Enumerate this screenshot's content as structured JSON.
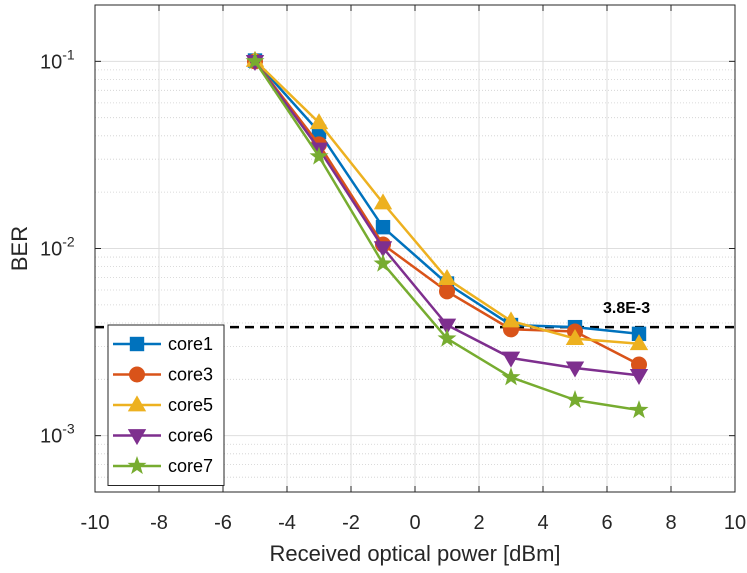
{
  "chart_data": {
    "type": "line",
    "title": "",
    "xlabel": "Received optical power [dBm]",
    "ylabel": "BER",
    "xlim": [
      -10,
      10
    ],
    "ylim": [
      0.0005,
      0.2
    ],
    "yscale": "log",
    "grid": true,
    "x_ticks": [
      -10,
      -8,
      -6,
      -4,
      -2,
      0,
      2,
      4,
      6,
      8,
      10
    ],
    "x_tick_labels": [
      "-10",
      "-8",
      "-6",
      "-4",
      "-2",
      "0",
      "2",
      "4",
      "6",
      "8",
      "10"
    ],
    "y_ticks": [
      0.001,
      0.01,
      0.1
    ],
    "y_tick_labels": [
      {
        "base": "10",
        "exp": "-3"
      },
      {
        "base": "10",
        "exp": "-2"
      },
      {
        "base": "10",
        "exp": "-1"
      }
    ],
    "x": [
      -5,
      -3,
      -1,
      1,
      3,
      5,
      7
    ],
    "series": [
      {
        "name": "core1",
        "color": "#0072BD",
        "marker": "square",
        "values": [
          0.101,
          0.042,
          0.013,
          0.0065,
          0.0039,
          0.0038,
          0.0035
        ]
      },
      {
        "name": "core3",
        "color": "#D95319",
        "marker": "circle",
        "values": [
          0.1,
          0.036,
          0.0105,
          0.0059,
          0.0037,
          0.0036,
          0.0024
        ]
      },
      {
        "name": "core5",
        "color": "#EDB120",
        "marker": "triangle-up",
        "values": [
          0.101,
          0.047,
          0.0175,
          0.0069,
          0.0041,
          0.0033,
          0.0031
        ]
      },
      {
        "name": "core6",
        "color": "#7E2F8E",
        "marker": "triangle-down",
        "values": [
          0.1,
          0.034,
          0.0101,
          0.0039,
          0.0026,
          0.0023,
          0.0021
        ]
      },
      {
        "name": "core7",
        "color": "#77AC30",
        "marker": "star",
        "values": [
          0.1,
          0.031,
          0.0083,
          0.0033,
          0.00205,
          0.00155,
          0.00137
        ]
      }
    ],
    "threshold": {
      "value": 0.0038,
      "label": "3.8E-3",
      "style": "dashed",
      "color": "#000000"
    },
    "legend": {
      "position": "bottom-left"
    }
  }
}
